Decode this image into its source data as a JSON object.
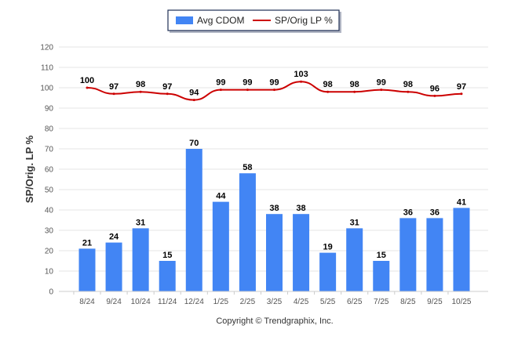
{
  "chart_data": {
    "type": "bar",
    "categories": [
      "8/24",
      "9/24",
      "10/24",
      "11/24",
      "12/24",
      "1/25",
      "2/25",
      "3/25",
      "4/25",
      "5/25",
      "6/25",
      "7/25",
      "8/25",
      "9/25",
      "10/25"
    ],
    "series": [
      {
        "name": "Avg CDOM",
        "type": "bar",
        "color": "#4285F4",
        "values": [
          21,
          24,
          31,
          15,
          70,
          44,
          58,
          38,
          38,
          19,
          31,
          15,
          36,
          36,
          41
        ]
      },
      {
        "name": "SP/Orig LP %",
        "type": "line",
        "color": "#CC0000",
        "values": [
          100,
          97,
          98,
          97,
          94,
          99,
          99,
          99,
          103,
          98,
          98,
          99,
          98,
          96,
          97
        ]
      }
    ],
    "ylabel": "SP/Orig. LP %",
    "xlabel": "",
    "ylim": [
      0,
      120
    ],
    "yticks": [
      0,
      10,
      20,
      30,
      40,
      50,
      60,
      70,
      80,
      90,
      100,
      110,
      120
    ],
    "grid": true,
    "legend": "top-center",
    "footer": "Copyright © Trendgraphix, Inc."
  }
}
